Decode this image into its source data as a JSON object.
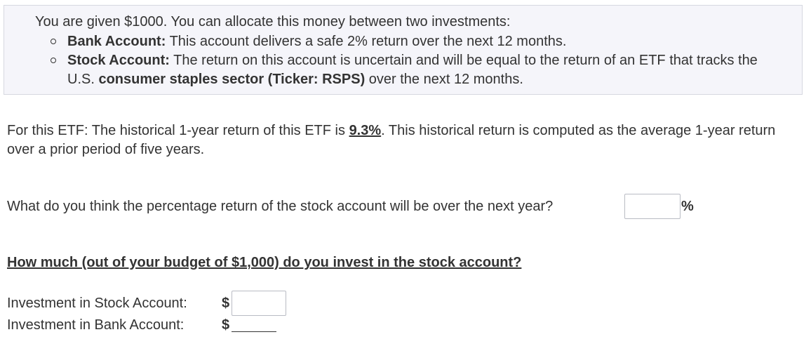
{
  "intro": {
    "text": "You are given $1000. You can allocate this money between two investments:"
  },
  "bullets": [
    {
      "label": "Bank Account:",
      "text": " This account delivers a safe 2% return over the next 12 months."
    },
    {
      "label": "Stock Account:",
      "text_before": " The return on this account is uncertain and will be equal to the return of an ETF that tracks the U.S. ",
      "bold_text": "consumer staples sector (Ticker: RSPS)",
      "text_after": " over the next 12 months."
    }
  ],
  "etf_info": {
    "text_before": "For this ETF: The historical 1-year return of this ETF is ",
    "highlight": "9.3%",
    "text_after": ". This historical return is computed as the average 1-year return over a prior period of five years."
  },
  "question": {
    "text": "What do you think the percentage return of the stock account will be over the next year?",
    "input_value": "",
    "unit": "%"
  },
  "invest_question": {
    "heading": "How much (out of your budget of $1,000) do you invest in the stock account?"
  },
  "stock_investment": {
    "label": "Investment in Stock Account:",
    "currency": "$",
    "input_value": ""
  },
  "bank_investment": {
    "label": "Investment in Bank Account:",
    "currency": "$"
  },
  "colors": {
    "box_background": "#f5f5fa",
    "box_border": "#d6d8e0",
    "text": "#333333",
    "input_border": "#b9bcc4"
  }
}
